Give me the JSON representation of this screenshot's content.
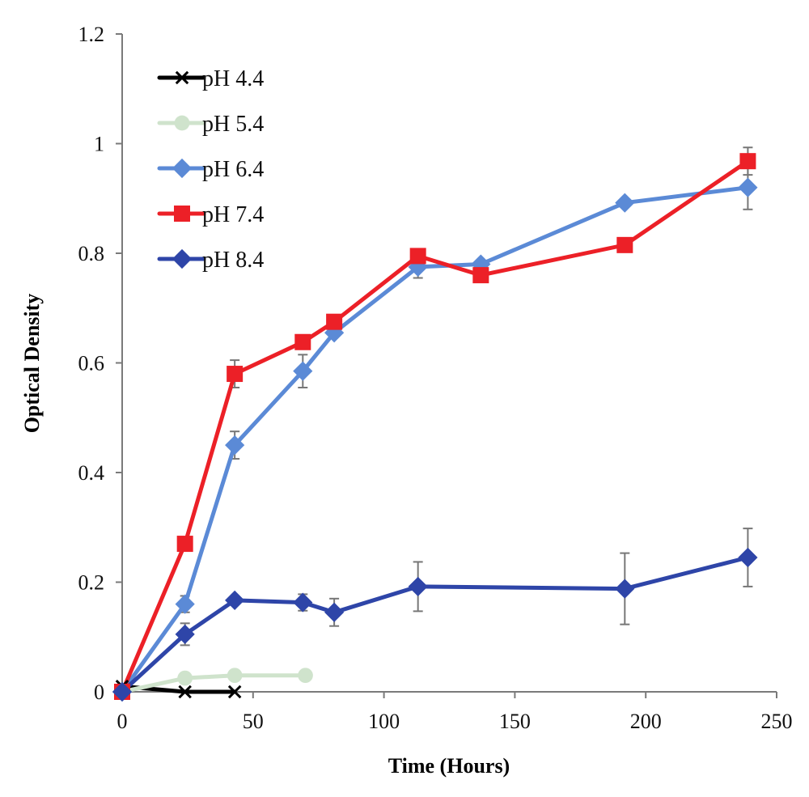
{
  "chart_data": {
    "type": "line",
    "xlabel": "Time (Hours)",
    "ylabel": "Optical Density",
    "xlim": [
      0,
      250
    ],
    "ylim": [
      0,
      1.2
    ],
    "xticks": [
      0,
      50,
      100,
      150,
      200,
      250
    ],
    "yticks": [
      0,
      0.2,
      0.4,
      0.6,
      0.8,
      1,
      1.2
    ],
    "xtick_labels": [
      "0",
      "50",
      "100",
      "150",
      "200",
      "250"
    ],
    "ytick_labels": [
      "0",
      "0.2",
      "0.4",
      "0.6",
      "0.8",
      "1",
      "1.2"
    ],
    "grid": false,
    "legend_position": "top-left",
    "series": [
      {
        "name": "pH 4.4",
        "color": "#000000",
        "marker": "x",
        "points": [
          {
            "x": 0,
            "y": 0.01
          },
          {
            "x": 24,
            "y": 0.0
          },
          {
            "x": 43,
            "y": 0.0
          }
        ]
      },
      {
        "name": "pH 5.4",
        "color": "#cfe3cc",
        "marker": "circle",
        "points": [
          {
            "x": 0,
            "y": 0.0
          },
          {
            "x": 24,
            "y": 0.025
          },
          {
            "x": 43,
            "y": 0.03
          },
          {
            "x": 70,
            "y": 0.03
          }
        ]
      },
      {
        "name": "pH 6.4",
        "color": "#5b8ad6",
        "marker": "diamond",
        "points": [
          {
            "x": 0,
            "y": 0.0
          },
          {
            "x": 24,
            "y": 0.16,
            "err": 0.015
          },
          {
            "x": 43,
            "y": 0.45,
            "err": 0.025
          },
          {
            "x": 69,
            "y": 0.585,
            "err": 0.03
          },
          {
            "x": 81,
            "y": 0.655
          },
          {
            "x": 113,
            "y": 0.775,
            "err": 0.02
          },
          {
            "x": 137,
            "y": 0.78
          },
          {
            "x": 192,
            "y": 0.892
          },
          {
            "x": 239,
            "y": 0.92,
            "err": 0.04
          }
        ]
      },
      {
        "name": "pH 7.4",
        "color": "#ec2027",
        "marker": "square",
        "points": [
          {
            "x": 0,
            "y": 0.0
          },
          {
            "x": 24,
            "y": 0.27
          },
          {
            "x": 43,
            "y": 0.58,
            "err": 0.025
          },
          {
            "x": 69,
            "y": 0.638
          },
          {
            "x": 81,
            "y": 0.675
          },
          {
            "x": 113,
            "y": 0.795
          },
          {
            "x": 137,
            "y": 0.76
          },
          {
            "x": 192,
            "y": 0.815
          },
          {
            "x": 239,
            "y": 0.968,
            "err": 0.025
          }
        ]
      },
      {
        "name": "pH 8.4",
        "color": "#2e45a8",
        "marker": "diamond",
        "points": [
          {
            "x": 0,
            "y": 0.0
          },
          {
            "x": 24,
            "y": 0.105,
            "err": 0.02
          },
          {
            "x": 43,
            "y": 0.167
          },
          {
            "x": 69,
            "y": 0.163,
            "err": 0.015
          },
          {
            "x": 81,
            "y": 0.145,
            "err": 0.025
          },
          {
            "x": 113,
            "y": 0.192,
            "err": 0.045
          },
          {
            "x": 192,
            "y": 0.188,
            "err": 0.065
          },
          {
            "x": 239,
            "y": 0.245,
            "err": 0.053
          }
        ]
      }
    ]
  }
}
